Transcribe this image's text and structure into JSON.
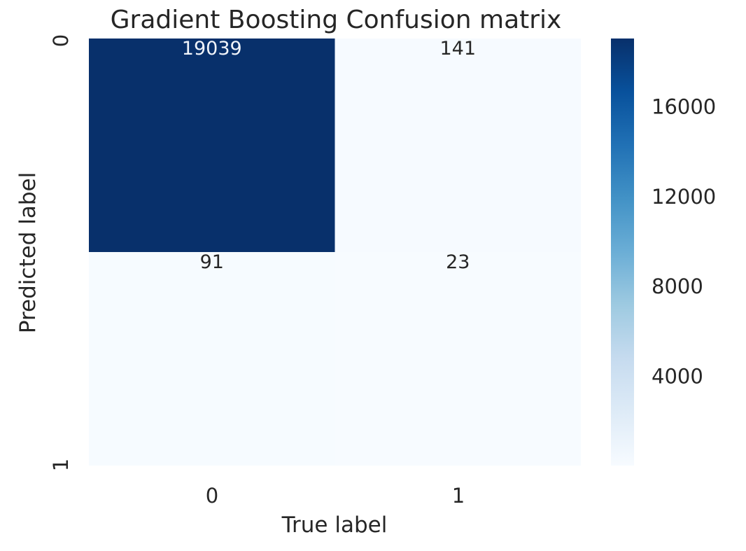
{
  "chart_data": {
    "type": "heatmap",
    "title": "Gradient Boosting Confusion matrix",
    "xlabel": "True label",
    "ylabel": "Predicted label",
    "x_tick_labels": [
      "0",
      "1"
    ],
    "y_tick_labels": [
      "0",
      "1"
    ],
    "matrix": [
      [
        19039,
        141
      ],
      [
        91,
        23
      ]
    ],
    "colormap": "Blues",
    "colorbar": {
      "range": [
        23,
        19039
      ],
      "ticks": [
        4000,
        8000,
        12000,
        16000
      ],
      "tick_labels": [
        "4000",
        "8000",
        "12000",
        "16000"
      ]
    },
    "colors": {
      "high": "#08306b",
      "low": "#f7fbff",
      "light_text": "#f0f4fa",
      "dark_text": "#262626"
    }
  }
}
